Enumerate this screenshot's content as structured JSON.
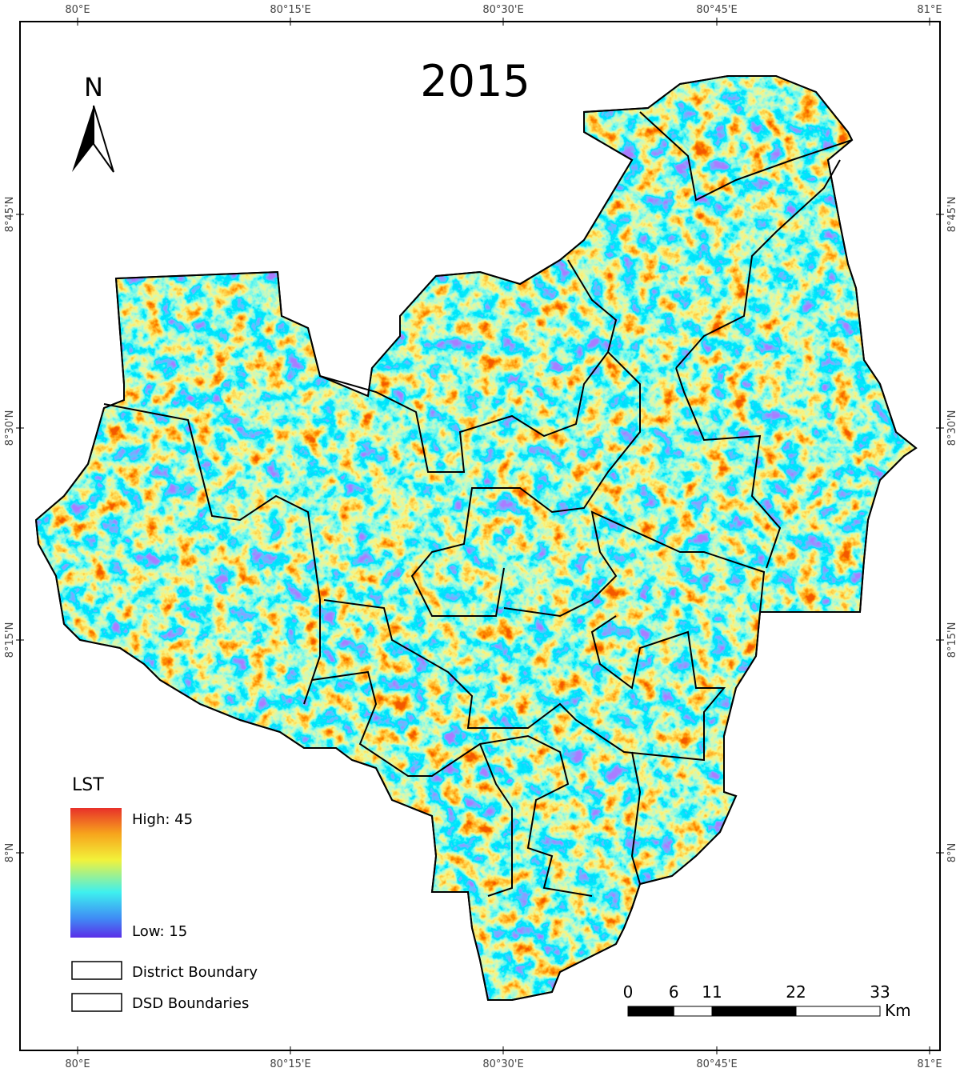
{
  "map": {
    "title": "2015",
    "north": "N",
    "x_labels": [
      "80°E",
      "80°15'E",
      "80°30'E",
      "80°45'E",
      "81°E"
    ],
    "y_labels": [
      "8°45'N",
      "8°30'N",
      "8°15'N",
      "8°N"
    ],
    "legend": {
      "title": "LST",
      "high": "High: 45",
      "low": "Low: 15",
      "items": [
        "District Boundary",
        "DSD Boundaries"
      ]
    },
    "scale_bar": {
      "ticks": [
        0,
        6,
        11,
        22,
        33
      ],
      "unit": "Km"
    }
  }
}
